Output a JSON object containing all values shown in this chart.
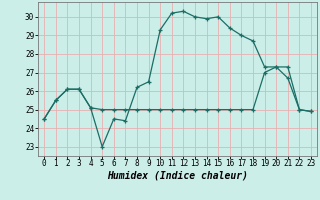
{
  "title": "",
  "xlabel": "Humidex (Indice chaleur)",
  "bg_color": "#cceee8",
  "grid_color": "#e8b0b0",
  "line_color": "#1a6e65",
  "x_hours": [
    0,
    1,
    2,
    3,
    4,
    5,
    6,
    7,
    8,
    9,
    10,
    11,
    12,
    13,
    14,
    15,
    16,
    17,
    18,
    19,
    20,
    21,
    22,
    23
  ],
  "humidex": [
    24.5,
    25.5,
    26.1,
    26.1,
    25.1,
    23.0,
    24.5,
    24.4,
    26.2,
    26.5,
    29.3,
    30.2,
    30.3,
    30.0,
    29.9,
    30.0,
    29.4,
    29.0,
    28.7,
    27.3,
    27.3,
    26.7,
    25.0,
    24.9
  ],
  "temperature": [
    24.5,
    25.5,
    26.1,
    26.1,
    25.1,
    25.0,
    25.0,
    25.0,
    25.0,
    25.0,
    25.0,
    25.0,
    25.0,
    25.0,
    25.0,
    25.0,
    25.0,
    25.0,
    25.0,
    27.0,
    27.3,
    27.3,
    25.0,
    24.9
  ],
  "ylim": [
    22.5,
    30.8
  ],
  "yticks": [
    23,
    24,
    25,
    26,
    27,
    28,
    29,
    30
  ],
  "xlim": [
    -0.5,
    23.5
  ],
  "xticks": [
    0,
    1,
    2,
    3,
    4,
    5,
    6,
    7,
    8,
    9,
    10,
    11,
    12,
    13,
    14,
    15,
    16,
    17,
    18,
    19,
    20,
    21,
    22,
    23
  ],
  "xlabel_fontsize": 7,
  "tick_fontsize": 5.5
}
